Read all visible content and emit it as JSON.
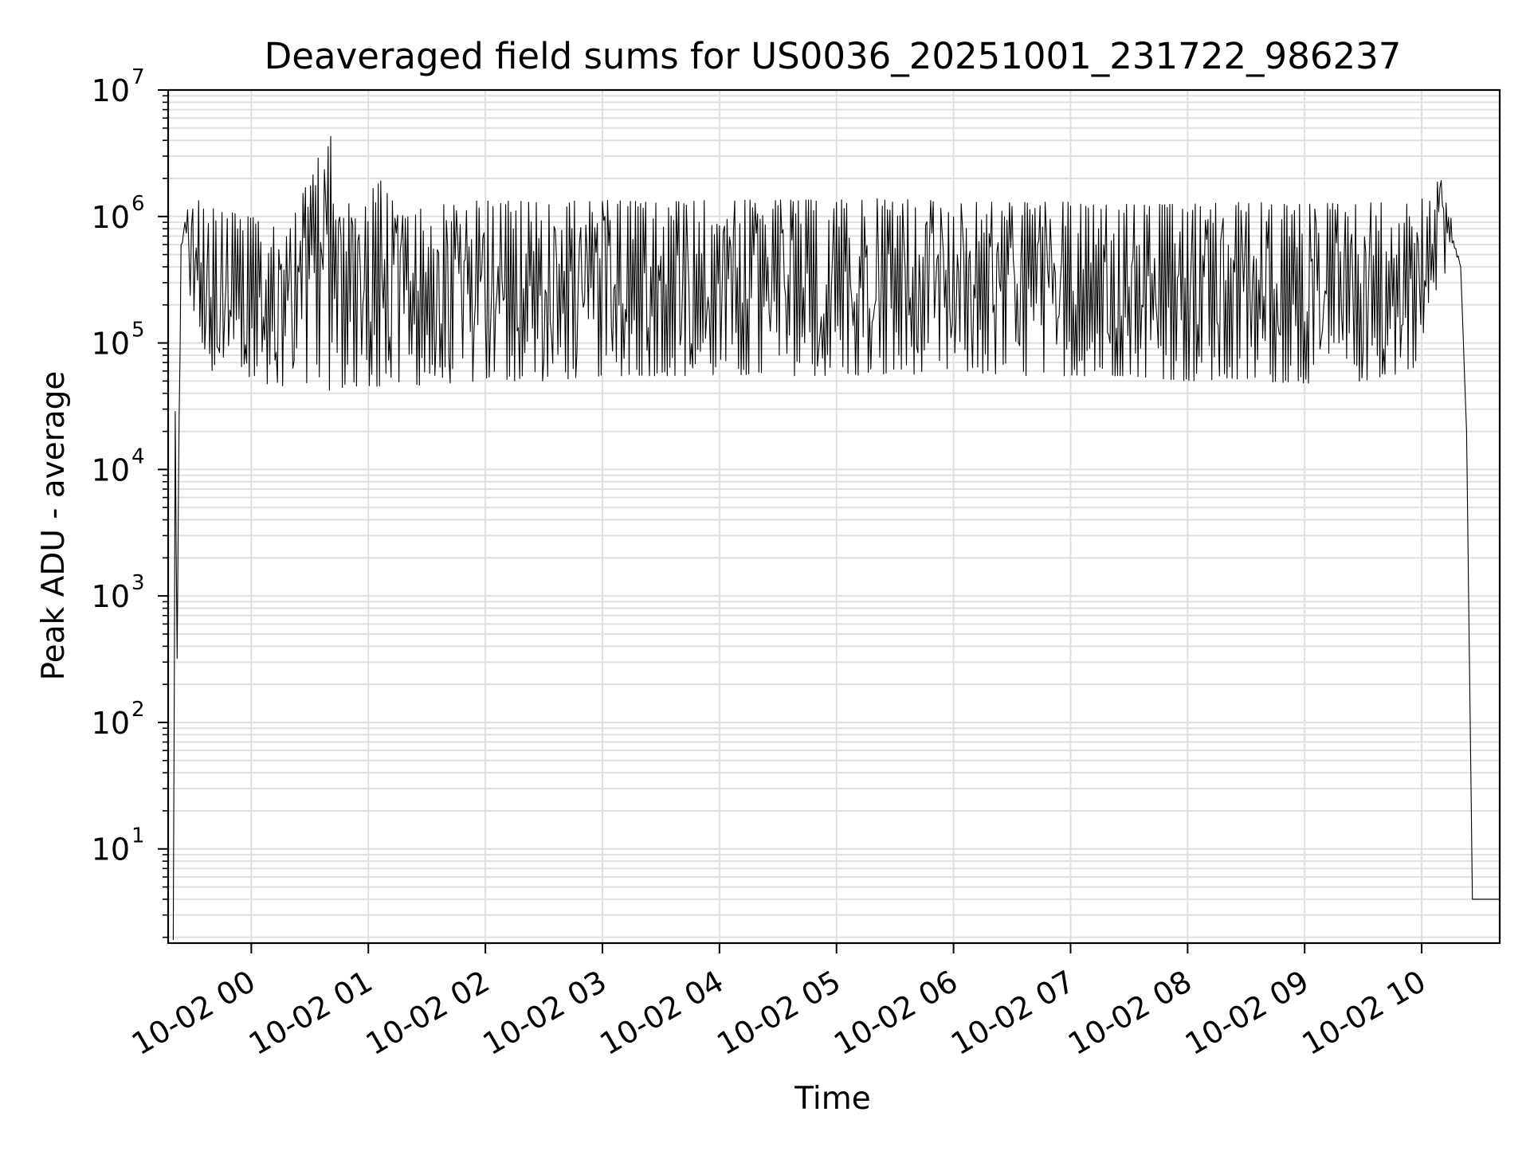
{
  "chart_data": {
    "type": "line",
    "title": "Deaveraged field sums for US0036_20251001_231722_986237",
    "xlabel": "Time",
    "ylabel": "Peak ADU - average",
    "yscale": "log",
    "ylim": [
      1.8,
      10000000
    ],
    "xlim": [
      "2025-10-01T23:17:22",
      "2025-10-02T10:40:00"
    ],
    "grid": true,
    "legend": "none",
    "line_color": "#000000",
    "grid_color": "#e0e0e0",
    "x_ticks": [
      {
        "value": "2025-10-02T00:00",
        "label": "10-02 00"
      },
      {
        "value": "2025-10-02T01:00",
        "label": "10-02 01"
      },
      {
        "value": "2025-10-02T02:00",
        "label": "10-02 02"
      },
      {
        "value": "2025-10-02T03:00",
        "label": "10-02 03"
      },
      {
        "value": "2025-10-02T04:00",
        "label": "10-02 04"
      },
      {
        "value": "2025-10-02T05:00",
        "label": "10-02 05"
      },
      {
        "value": "2025-10-02T06:00",
        "label": "10-02 06"
      },
      {
        "value": "2025-10-02T07:00",
        "label": "10-02 07"
      },
      {
        "value": "2025-10-02T08:00",
        "label": "10-02 08"
      },
      {
        "value": "2025-10-02T09:00",
        "label": "10-02 09"
      },
      {
        "value": "2025-10-02T10:00",
        "label": "10-02 10"
      }
    ],
    "y_ticks": [
      {
        "value": 10,
        "base": "10",
        "exp": "1"
      },
      {
        "value": 100,
        "base": "10",
        "exp": "2"
      },
      {
        "value": 1000,
        "base": "10",
        "exp": "3"
      },
      {
        "value": 10000,
        "base": "10",
        "exp": "4"
      },
      {
        "value": 100000,
        "base": "10",
        "exp": "5"
      },
      {
        "value": 1000000,
        "base": "10",
        "exp": "6"
      },
      {
        "value": 10000000,
        "base": "10",
        "exp": "7"
      }
    ],
    "series": [
      {
        "x": [
          "2025-10-01T23:20",
          "2025-10-01T23:21",
          "2025-10-01T23:22",
          "2025-10-01T23:23",
          "2025-10-01T23:24",
          "2025-10-01T23:26",
          "2025-10-01T23:28",
          "2025-10-01T23:30",
          "2025-10-01T23:33",
          "2025-10-01T23:38",
          "2025-10-01T23:45",
          "2025-10-01T23:57",
          "2025-10-02T00:20",
          "2025-10-02T00:42",
          "2025-10-02T00:52",
          "2025-10-02T01:07",
          "2025-10-02T01:15",
          "2025-10-02T01:40",
          "2025-10-02T02:00",
          "2025-10-02T02:30",
          "2025-10-02T03:00",
          "2025-10-02T03:30",
          "2025-10-02T04:00",
          "2025-10-02T04:30",
          "2025-10-02T05:00",
          "2025-10-02T05:30",
          "2025-10-02T06:00",
          "2025-10-02T06:30",
          "2025-10-02T07:00",
          "2025-10-02T07:30",
          "2025-10-02T08:00",
          "2025-10-02T08:30",
          "2025-10-02T09:00",
          "2025-10-02T09:30",
          "2025-10-02T09:55",
          "2025-10-02T10:10",
          "2025-10-02T10:15",
          "2025-10-02T10:20",
          "2025-10-02T10:23",
          "2025-10-02T10:26",
          "2025-10-02T10:29",
          "2025-10-02T10:31",
          "2025-10-02T10:40"
        ],
        "high": [
          1.9,
          30000,
          320,
          40000,
          600000,
          1050000,
          1300000,
          1200000,
          1350000,
          1200000,
          1150000,
          1000000,
          900000,
          5500000,
          1100000,
          2000000,
          1100000,
          1250000,
          1350000,
          1300000,
          1350000,
          1300000,
          1350000,
          1350000,
          1350000,
          1400000,
          1300000,
          1300000,
          1300000,
          1250000,
          1250000,
          1300000,
          1250000,
          1300000,
          1250000,
          2000000,
          1000000,
          400000,
          20000,
          4,
          4,
          4,
          4
        ],
        "low": [
          1.9,
          12000,
          320,
          12000,
          350000,
          800000,
          250000,
          200000,
          100000,
          60000,
          55000,
          50000,
          45000,
          42000,
          45000,
          45000,
          45000,
          48000,
          50000,
          50000,
          55000,
          55000,
          55000,
          55000,
          55000,
          55000,
          60000,
          55000,
          55000,
          55000,
          50000,
          50000,
          48000,
          50000,
          60000,
          250000,
          600000,
          400000,
          20000,
          4,
          4,
          4,
          4
        ]
      }
    ]
  }
}
